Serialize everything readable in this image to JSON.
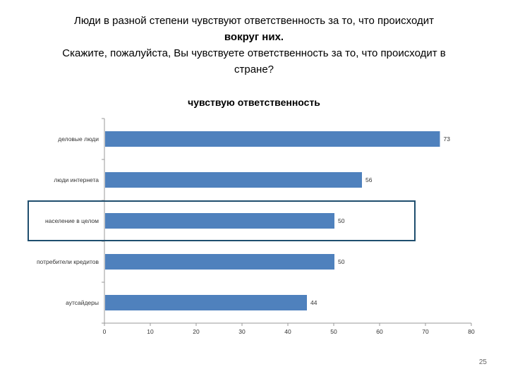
{
  "slide": {
    "title_lines": [
      "Люди в разной степени чувствуют ответственность за то, что происходит",
      "вокруг них.",
      "Скажите, пожалуйста, Вы чувствуете ответственность за то, что происходит в",
      "стране?"
    ],
    "page_number": "25"
  },
  "colors": {
    "bar": "#4f81bd",
    "highlight_border": "#1f4e6e",
    "axis": "#999999"
  },
  "chart_data": {
    "type": "bar",
    "orientation": "horizontal",
    "title": "чувствую ответственность",
    "categories": [
      "деловые люди",
      "люди интернета",
      "население в целом",
      "потребители кредитов",
      "аутсайдеры"
    ],
    "values": [
      73,
      56,
      50,
      50,
      44
    ],
    "value_labels": [
      "73",
      "56",
      "50",
      "50",
      "44"
    ],
    "xlim": [
      0,
      80
    ],
    "xticks": [
      0,
      10,
      20,
      30,
      40,
      50,
      60,
      70,
      80
    ],
    "xtick_labels": [
      "0",
      "10",
      "20",
      "30",
      "40",
      "50",
      "60",
      "70",
      "80"
    ],
    "highlighted_category": "население в целом",
    "grid": false,
    "legend": "none"
  }
}
